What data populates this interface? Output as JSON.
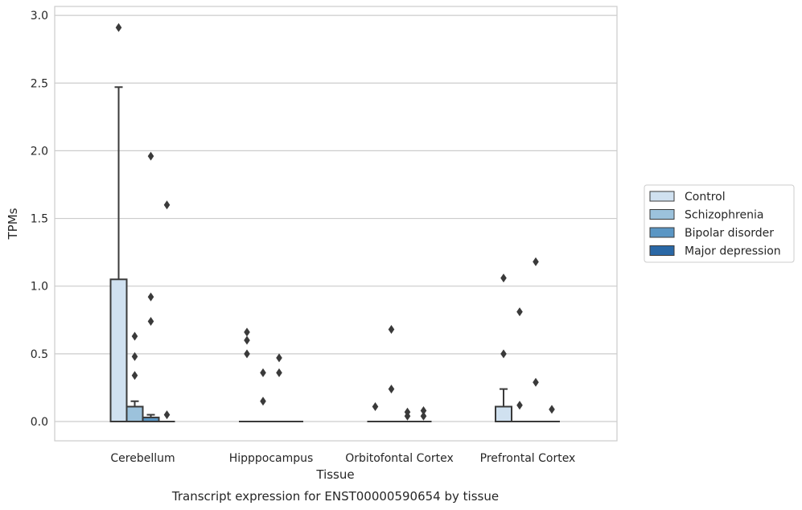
{
  "chart_data": {
    "type": "boxplot",
    "title": "Transcript expression for ENST00000590654 by tissue",
    "xlabel": "Tissue",
    "ylabel": "TPMs",
    "ylim": [
      -0.14,
      3.07
    ],
    "yticks": [
      "0.0",
      "0.5",
      "1.0",
      "1.5",
      "2.0",
      "2.5",
      "3.0"
    ],
    "grid": true,
    "legend_position": "right",
    "categories": [
      "Cerebellum",
      "Hipppocampus",
      "Orbitofontal Cortex",
      "Prefrontal Cortex"
    ],
    "series": [
      {
        "name": "Control",
        "color": "#d0e1f0",
        "boxes": [
          {
            "q1": 0.0,
            "median": 0.0,
            "q3": 1.05,
            "whisker_low": 0.0,
            "whisker_high": 2.47,
            "outliers": [
              2.91
            ]
          },
          {
            "q1": 0.0,
            "median": 0.0,
            "q3": 0.0,
            "whisker_low": 0.0,
            "whisker_high": 0.0,
            "outliers": [
              0.66,
              0.6,
              0.5
            ]
          },
          {
            "q1": 0.0,
            "median": 0.0,
            "q3": 0.0,
            "whisker_low": 0.0,
            "whisker_high": 0.0,
            "outliers": [
              0.11
            ]
          },
          {
            "q1": 0.0,
            "median": 0.0,
            "q3": 0.11,
            "whisker_low": 0.0,
            "whisker_high": 0.24,
            "outliers": [
              1.06,
              0.5
            ]
          }
        ]
      },
      {
        "name": "Schizophrenia",
        "color": "#9cc2dc",
        "boxes": [
          {
            "q1": 0.0,
            "median": 0.0,
            "q3": 0.11,
            "whisker_low": 0.0,
            "whisker_high": 0.15,
            "outliers": [
              0.63,
              0.48,
              0.34
            ]
          },
          {
            "q1": 0.0,
            "median": 0.0,
            "q3": 0.0,
            "whisker_low": 0.0,
            "whisker_high": 0.0,
            "outliers": [
              0.36,
              0.15
            ]
          },
          {
            "q1": 0.0,
            "median": 0.0,
            "q3": 0.0,
            "whisker_low": 0.0,
            "whisker_high": 0.0,
            "outliers": [
              0.68,
              0.24
            ]
          },
          {
            "q1": 0.0,
            "median": 0.0,
            "q3": 0.0,
            "whisker_low": 0.0,
            "whisker_high": 0.0,
            "outliers": [
              0.81,
              0.12
            ]
          }
        ]
      },
      {
        "name": "Bipolar disorder",
        "color": "#5a96c4",
        "boxes": [
          {
            "q1": 0.0,
            "median": 0.0,
            "q3": 0.03,
            "whisker_low": 0.0,
            "whisker_high": 0.05,
            "outliers": [
              1.96,
              0.92,
              0.74
            ]
          },
          {
            "q1": 0.0,
            "median": 0.0,
            "q3": 0.0,
            "whisker_low": 0.0,
            "whisker_high": 0.0,
            "outliers": [
              0.47,
              0.36
            ]
          },
          {
            "q1": 0.0,
            "median": 0.0,
            "q3": 0.0,
            "whisker_low": 0.0,
            "whisker_high": 0.0,
            "outliers": [
              0.07,
              0.04
            ]
          },
          {
            "q1": 0.0,
            "median": 0.0,
            "q3": 0.0,
            "whisker_low": 0.0,
            "whisker_high": 0.0,
            "outliers": [
              1.18,
              0.29
            ]
          }
        ]
      },
      {
        "name": "Major depression",
        "color": "#2a68a6",
        "boxes": [
          {
            "q1": 0.0,
            "median": 0.0,
            "q3": 0.0,
            "whisker_low": 0.0,
            "whisker_high": 0.0,
            "outliers": [
              1.6,
              0.05
            ]
          },
          {
            "q1": 0.0,
            "median": 0.0,
            "q3": 0.0,
            "whisker_low": 0.0,
            "whisker_high": 0.0,
            "outliers": []
          },
          {
            "q1": 0.0,
            "median": 0.0,
            "q3": 0.0,
            "whisker_low": 0.0,
            "whisker_high": 0.0,
            "outliers": [
              0.08,
              0.04
            ]
          },
          {
            "q1": 0.0,
            "median": 0.0,
            "q3": 0.0,
            "whisker_low": 0.0,
            "whisker_high": 0.0,
            "outliers": [
              0.09
            ]
          }
        ]
      }
    ]
  }
}
